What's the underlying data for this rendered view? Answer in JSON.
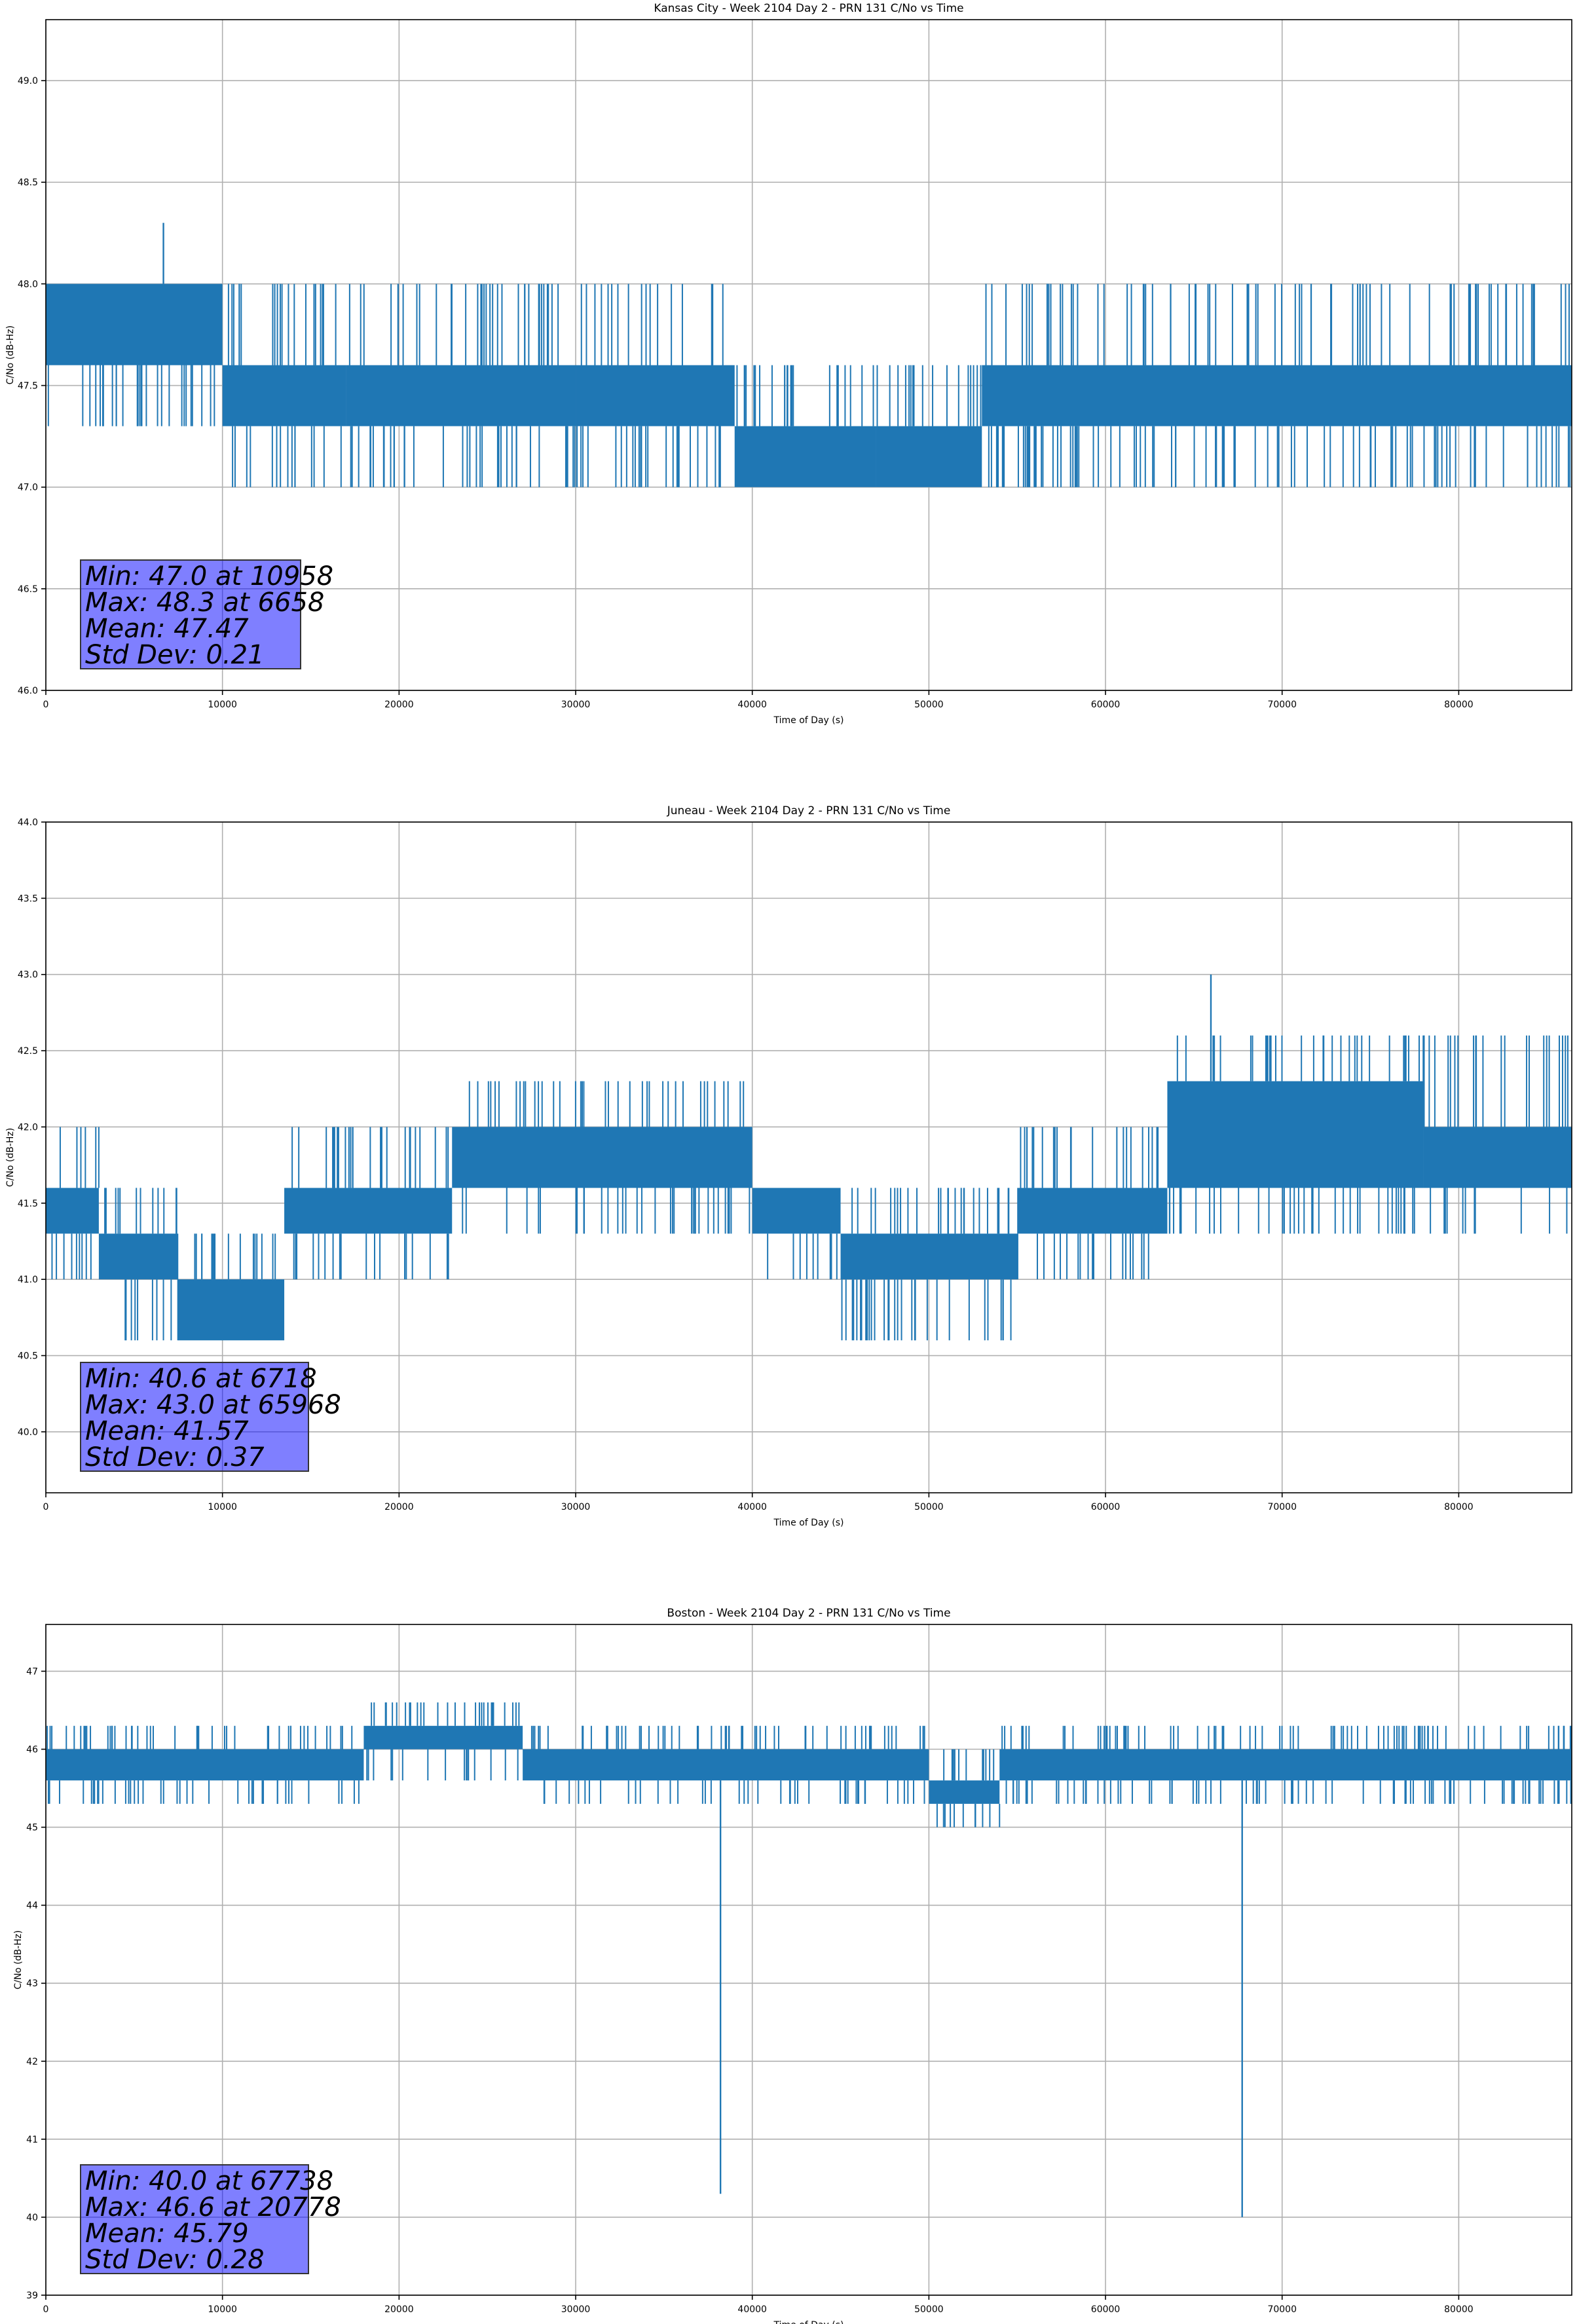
{
  "chart_data": [
    {
      "type": "line",
      "title": "Kansas City - Week 2104 Day 2 - PRN 131 C/No vs Time",
      "xlabel": "Time of Day (s)",
      "ylabel": "C/No (dB-Hz)",
      "xlim": [
        0,
        86400
      ],
      "ylim": [
        46.0,
        49.3
      ],
      "xticks": [
        0,
        10000,
        20000,
        30000,
        40000,
        50000,
        60000,
        70000,
        80000
      ],
      "yticks": [
        46.0,
        46.5,
        47.0,
        47.5,
        48.0,
        48.5,
        49.0
      ],
      "ytick_decimals": 1,
      "grid": true,
      "color": "#1f77b4",
      "series": [
        {
          "segments": [
            {
              "x": [
                0,
                10000
              ],
              "lo": 47.6,
              "hi": 48.0,
              "spike_lo": 47.3,
              "spike_hi": 48.0
            },
            {
              "x": [
                10000,
                17000
              ],
              "lo": 47.3,
              "hi": 47.6,
              "spike_lo": 47.0,
              "spike_hi": 48.0
            },
            {
              "x": [
                17000,
                30000
              ],
              "lo": 47.3,
              "hi": 47.6,
              "spike_lo": 47.0,
              "spike_hi": 48.0
            },
            {
              "x": [
                30000,
                39000
              ],
              "lo": 47.3,
              "hi": 47.6,
              "spike_lo": 47.0,
              "spike_hi": 48.0
            },
            {
              "x": [
                39000,
                47000
              ],
              "lo": 47.0,
              "hi": 47.3,
              "spike_lo": 47.0,
              "spike_hi": 47.6
            },
            {
              "x": [
                47000,
                53000
              ],
              "lo": 47.0,
              "hi": 47.3,
              "spike_lo": 47.0,
              "spike_hi": 47.6
            },
            {
              "x": [
                53000,
                86400
              ],
              "lo": 47.3,
              "hi": 47.6,
              "spike_lo": 47.0,
              "spike_hi": 48.0
            }
          ],
          "spikes": [
            {
              "x": 6658,
              "value": 48.3
            }
          ]
        }
      ],
      "stats": {
        "min": "Min: 47.0 at 10958",
        "max": "Max: 48.3 at 6658",
        "mean": "Mean: 47.47",
        "std": "Std Dev: 0.21"
      }
    },
    {
      "type": "line",
      "title": "Juneau - Week 2104 Day 2 - PRN 131 C/No vs Time",
      "xlabel": "Time of Day (s)",
      "ylabel": "C/No (dB-Hz)",
      "xlim": [
        0,
        86400
      ],
      "ylim": [
        39.6,
        44.0
      ],
      "xticks": [
        0,
        10000,
        20000,
        30000,
        40000,
        50000,
        60000,
        70000,
        80000
      ],
      "yticks": [
        40.0,
        40.5,
        41.0,
        41.5,
        42.0,
        42.5,
        43.0,
        43.5,
        44.0
      ],
      "ytick_decimals": 1,
      "grid": true,
      "color": "#1f77b4",
      "series": [
        {
          "segments": [
            {
              "x": [
                0,
                3000
              ],
              "lo": 41.3,
              "hi": 41.6,
              "spike_lo": 41.0,
              "spike_hi": 42.0
            },
            {
              "x": [
                3000,
                7500
              ],
              "lo": 41.0,
              "hi": 41.3,
              "spike_lo": 40.6,
              "spike_hi": 41.6
            },
            {
              "x": [
                7500,
                13500
              ],
              "lo": 40.6,
              "hi": 41.0,
              "spike_lo": 40.6,
              "spike_hi": 41.3
            },
            {
              "x": [
                13500,
                23000
              ],
              "lo": 41.3,
              "hi": 41.6,
              "spike_lo": 41.0,
              "spike_hi": 42.0
            },
            {
              "x": [
                23000,
                40000
              ],
              "lo": 41.6,
              "hi": 42.0,
              "spike_lo": 41.3,
              "spike_hi": 42.3
            },
            {
              "x": [
                40000,
                45000
              ],
              "lo": 41.3,
              "hi": 41.6,
              "spike_lo": 41.0,
              "spike_hi": 41.6
            },
            {
              "x": [
                45000,
                55000
              ],
              "lo": 41.0,
              "hi": 41.3,
              "spike_lo": 40.6,
              "spike_hi": 41.6
            },
            {
              "x": [
                55000,
                63500
              ],
              "lo": 41.3,
              "hi": 41.6,
              "spike_lo": 41.0,
              "spike_hi": 42.0
            },
            {
              "x": [
                63500,
                78000
              ],
              "lo": 41.6,
              "hi": 42.3,
              "spike_lo": 41.3,
              "spike_hi": 42.6
            },
            {
              "x": [
                78000,
                86400
              ],
              "lo": 41.6,
              "hi": 42.0,
              "spike_lo": 41.3,
              "spike_hi": 42.6
            }
          ],
          "spikes": [
            {
              "x": 65968,
              "value": 43.0
            },
            {
              "x": 46500,
              "value": 40.6
            },
            {
              "x": 54200,
              "value": 40.6
            }
          ]
        }
      ],
      "stats": {
        "min": "Min: 40.6 at 6718",
        "max": "Max: 43.0 at 65968",
        "mean": "Mean: 41.57",
        "std": "Std Dev: 0.37"
      }
    },
    {
      "type": "line",
      "title": "Boston - Week 2104 Day 2 - PRN 131 C/No vs Time",
      "xlabel": "Time of Day (s)",
      "ylabel": "C/No (dB-Hz)",
      "xlim": [
        0,
        86400
      ],
      "ylim": [
        39.0,
        47.6
      ],
      "xticks": [
        0,
        10000,
        20000,
        30000,
        40000,
        50000,
        60000,
        70000,
        80000
      ],
      "yticks": [
        39,
        40,
        41,
        42,
        43,
        44,
        45,
        46,
        47
      ],
      "ytick_decimals": 0,
      "grid": true,
      "color": "#1f77b4",
      "series": [
        {
          "segments": [
            {
              "x": [
                0,
                18000
              ],
              "lo": 45.6,
              "hi": 46.0,
              "spike_lo": 45.3,
              "spike_hi": 46.3
            },
            {
              "x": [
                18000,
                27000
              ],
              "lo": 46.0,
              "hi": 46.3,
              "spike_lo": 45.6,
              "spike_hi": 46.6
            },
            {
              "x": [
                27000,
                50000
              ],
              "lo": 45.6,
              "hi": 46.0,
              "spike_lo": 45.3,
              "spike_hi": 46.3
            },
            {
              "x": [
                50000,
                54000
              ],
              "lo": 45.3,
              "hi": 45.6,
              "spike_lo": 45.0,
              "spike_hi": 46.0
            },
            {
              "x": [
                54000,
                86400
              ],
              "lo": 45.6,
              "hi": 46.0,
              "spike_lo": 45.3,
              "spike_hi": 46.3
            }
          ],
          "spikes": [
            {
              "x": 38200,
              "value": 40.3
            },
            {
              "x": 67738,
              "value": 40.0
            }
          ]
        }
      ],
      "stats": {
        "min": "Min: 40.0 at 67738",
        "max": "Max: 46.6 at 20778",
        "mean": "Mean: 45.79",
        "std": "Std Dev: 0.28"
      }
    }
  ]
}
